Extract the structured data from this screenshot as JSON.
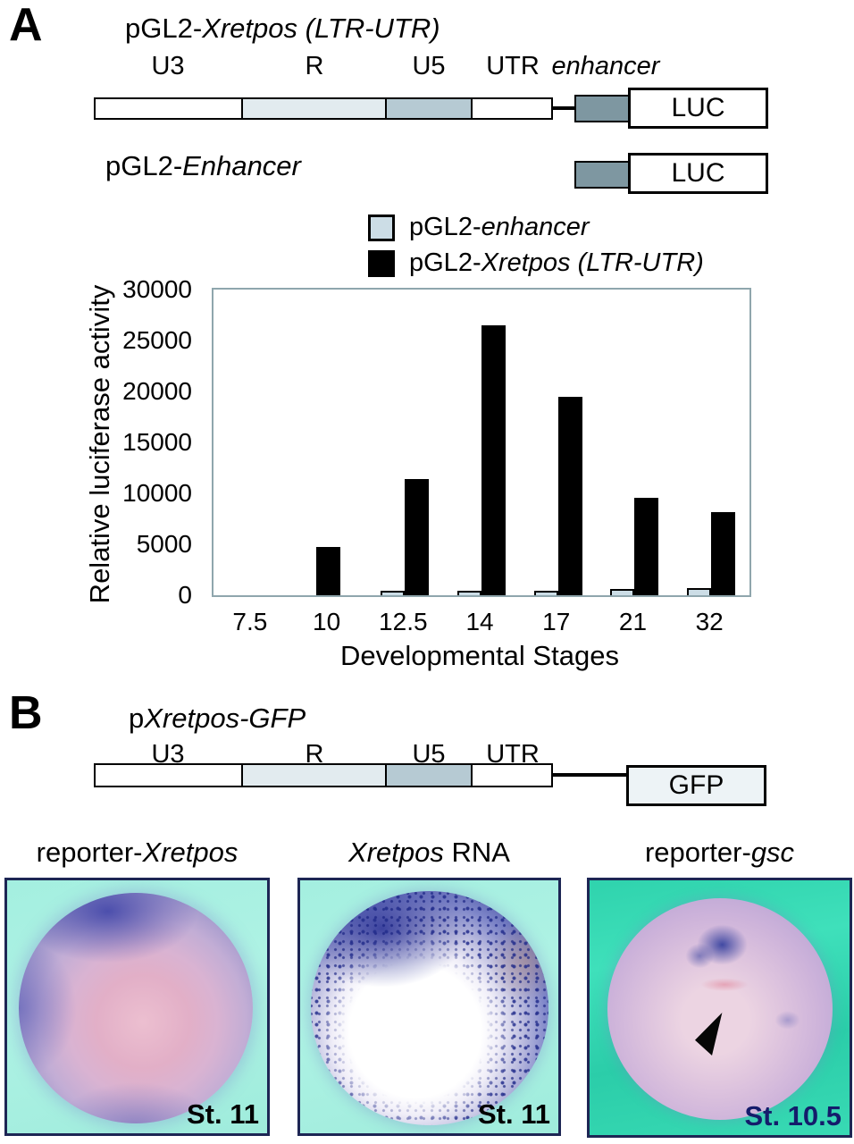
{
  "colors": {
    "r_segment": "#e2ebef",
    "u5_segment": "#b6cad3",
    "enhancer_box": "#7e97a1",
    "bar_enhancer_fill": "#ccdde6",
    "bar_xretpos_fill": "#000000",
    "plot_border": "#8fa6ad",
    "photo_background_cyan": "#a8efe0",
    "photo_background_teal": "#32d6b0",
    "stage_label_navy": "#141c6b"
  },
  "panelA": {
    "letter": "A",
    "construct1": {
      "title_prefix": "pGL2-",
      "title_italic": "Xretpos (LTR-UTR)",
      "segments": [
        {
          "label": "U3"
        },
        {
          "label": "R"
        },
        {
          "label": "U5"
        },
        {
          "label": "UTR"
        },
        {
          "label": "enhancer"
        }
      ],
      "luc_label": "LUC"
    },
    "construct2": {
      "title_prefix": "pGL2-",
      "title_italic": "Enhancer",
      "luc_label": "LUC"
    },
    "legend": [
      {
        "prefix": "pGL2-",
        "italic": "enhancer",
        "swatch": "#ccdde6"
      },
      {
        "prefix": "pGL2-",
        "italic": "Xretpos (LTR-UTR)",
        "swatch": "#000000"
      }
    ]
  },
  "chart_data": {
    "type": "bar",
    "title": "",
    "xlabel": "Developmental Stages",
    "ylabel": "Relative luciferase activity",
    "categories": [
      "7.5",
      "10",
      "12.5",
      "14",
      "17",
      "21",
      "32"
    ],
    "series": [
      {
        "name": "pGL2-enhancer",
        "color": "#ccdde6",
        "values": [
          0,
          0,
          450,
          450,
          400,
          600,
          700
        ]
      },
      {
        "name": "pGL2-Xretpos (LTR-UTR)",
        "color": "#000000",
        "values": [
          0,
          4700,
          11400,
          26500,
          19500,
          9600,
          8200
        ]
      }
    ],
    "ylim": [
      0,
      30000
    ],
    "yticks": [
      0,
      5000,
      10000,
      15000,
      20000,
      25000,
      30000
    ],
    "grid": false,
    "legend_position": "above-chart-right"
  },
  "panelB": {
    "letter": "B",
    "construct": {
      "title_prefix": "p",
      "title_italic": "Xretpos-GFP",
      "segments": [
        {
          "label": "U3"
        },
        {
          "label": "R"
        },
        {
          "label": "U5"
        },
        {
          "label": "UTR"
        }
      ],
      "gfp_label": "GFP"
    },
    "images": [
      {
        "title_prefix": "reporter-",
        "title_italic": "Xretpos",
        "title_suffix": "",
        "stage": "St. 11"
      },
      {
        "title_prefix": "",
        "title_italic": "Xretpos",
        "title_suffix": " RNA",
        "stage": "St. 11"
      },
      {
        "title_prefix": "reporter-",
        "title_italic": "gsc",
        "title_suffix": "",
        "stage": "St. 10.5"
      }
    ]
  }
}
